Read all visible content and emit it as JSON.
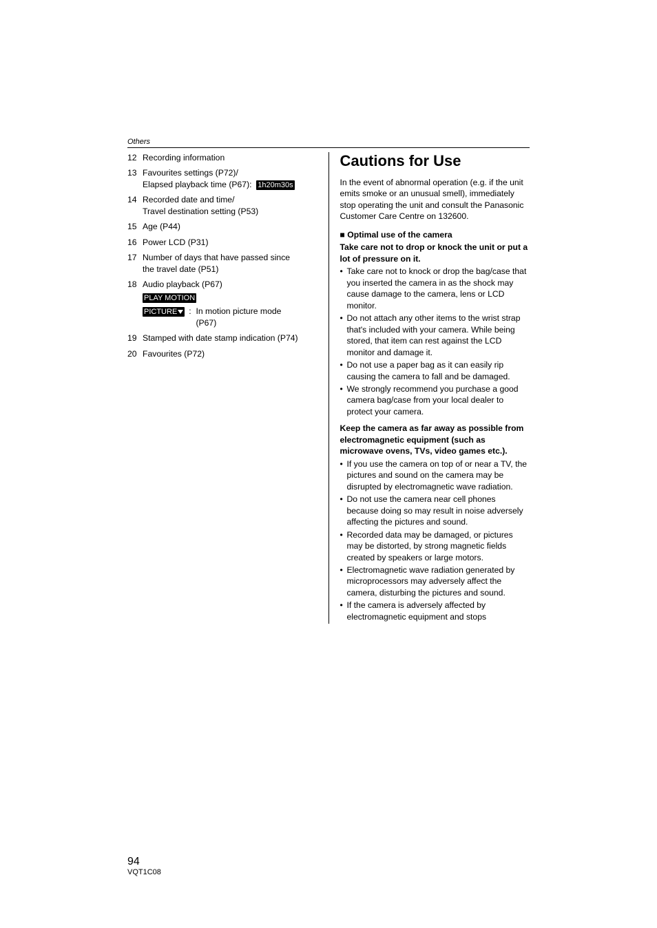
{
  "header": {
    "section": "Others"
  },
  "left": {
    "items": [
      {
        "num": "12",
        "text": "Recording information"
      },
      {
        "num": "13",
        "line1": "Favourites settings (P72)/",
        "line2": "Elapsed playback time (P67):",
        "tag": "1h20m30s"
      },
      {
        "num": "14",
        "line1": "Recorded date and time/",
        "line2": "Travel destination setting (P53)"
      },
      {
        "num": "15",
        "text": "Age (P44)"
      },
      {
        "num": "16",
        "text": "Power LCD (P31)"
      },
      {
        "num": "17",
        "line1": "Number of days that have passed since",
        "line2": "the travel date (P51)"
      },
      {
        "num": "18",
        "text": "Audio playback (P67)",
        "pm_top": "PLAY MOTION",
        "pm_bottom": "PICTURE",
        "pm_desc_prefix": ":",
        "pm_desc1": "In motion picture mode",
        "pm_desc2": "(P67)"
      },
      {
        "num": "19",
        "text": "Stamped with date stamp indication (P74)"
      },
      {
        "num": "20",
        "text": "Favourites (P72)"
      }
    ]
  },
  "right": {
    "title": "Cautions for Use",
    "intro": "In the event of abnormal operation (e.g. if the unit emits smoke or an unusual smell), immediately stop operating the unit and consult the Panasonic Customer Care Centre on 132600.",
    "h1_prefix": "■",
    "h1": "Optimal use of the camera",
    "h1_sub": "Take care not to drop or knock the unit or put a lot of pressure on it.",
    "bullets1": [
      "Take care not to knock or drop the bag/case that you inserted the camera in as the shock may cause damage to the camera, lens or LCD monitor.",
      "Do not attach any other items to the wrist strap that's included with your camera. While being stored, that item can rest against the LCD monitor and damage it.",
      "Do not use a paper bag as it can easily rip causing the camera to fall and be damaged.",
      "We strongly recommend you purchase a good camera bag/case from your local dealer to protect your camera."
    ],
    "h2": "Keep the camera as far away as possible from electromagnetic equipment (such as microwave ovens, TVs, video games etc.).",
    "bullets2": [
      "If you use the camera on top of or near a TV, the pictures and sound on the camera may be disrupted by electromagnetic wave radiation.",
      "Do not use the camera near cell phones because doing so may result in noise adversely affecting the pictures and sound.",
      "Recorded data may be damaged, or pictures may be distorted, by strong magnetic fields created by speakers or large motors.",
      "Electromagnetic wave radiation generated by microprocessors may adversely affect the camera, disturbing the pictures and sound.",
      "If the camera is adversely affected by electromagnetic equipment and stops"
    ]
  },
  "footer": {
    "page": "94",
    "code": "VQT1C08"
  }
}
